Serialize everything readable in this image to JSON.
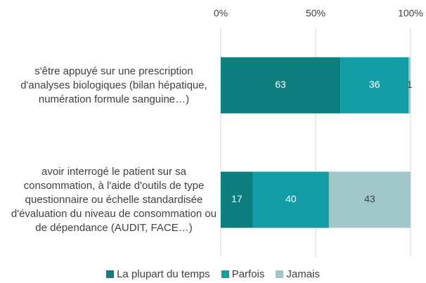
{
  "chart_data": {
    "type": "stacked-barh",
    "categories": [
      "s'être appuyé sur une prescription d'analyses biologiques (bilan hépatique, numération formule sanguine…)",
      "avoir interrogé le patient sur sa consommation, à l'aide d'outils de type questionnaire ou échelle standardisée d'évaluation du niveau de consommation ou de dépendance (AUDIT, FACE…)"
    ],
    "series": [
      {
        "name": "La plupart du temps",
        "color": "#0e7f7e",
        "label_color": "#ffffff",
        "values": [
          63,
          17
        ]
      },
      {
        "name": "Parfois",
        "color": "#139ea6",
        "label_color": "#ffffff",
        "values": [
          36,
          40
        ]
      },
      {
        "name": "Jamais",
        "color": "#a2c7ca",
        "label_color": "#404040",
        "values": [
          1,
          43
        ]
      }
    ],
    "xlim": [
      0,
      100
    ],
    "xticks": [
      {
        "value": 0,
        "label": "0%"
      },
      {
        "value": 50,
        "label": "50%"
      },
      {
        "value": 100,
        "label": "100%"
      }
    ],
    "grid": true
  }
}
